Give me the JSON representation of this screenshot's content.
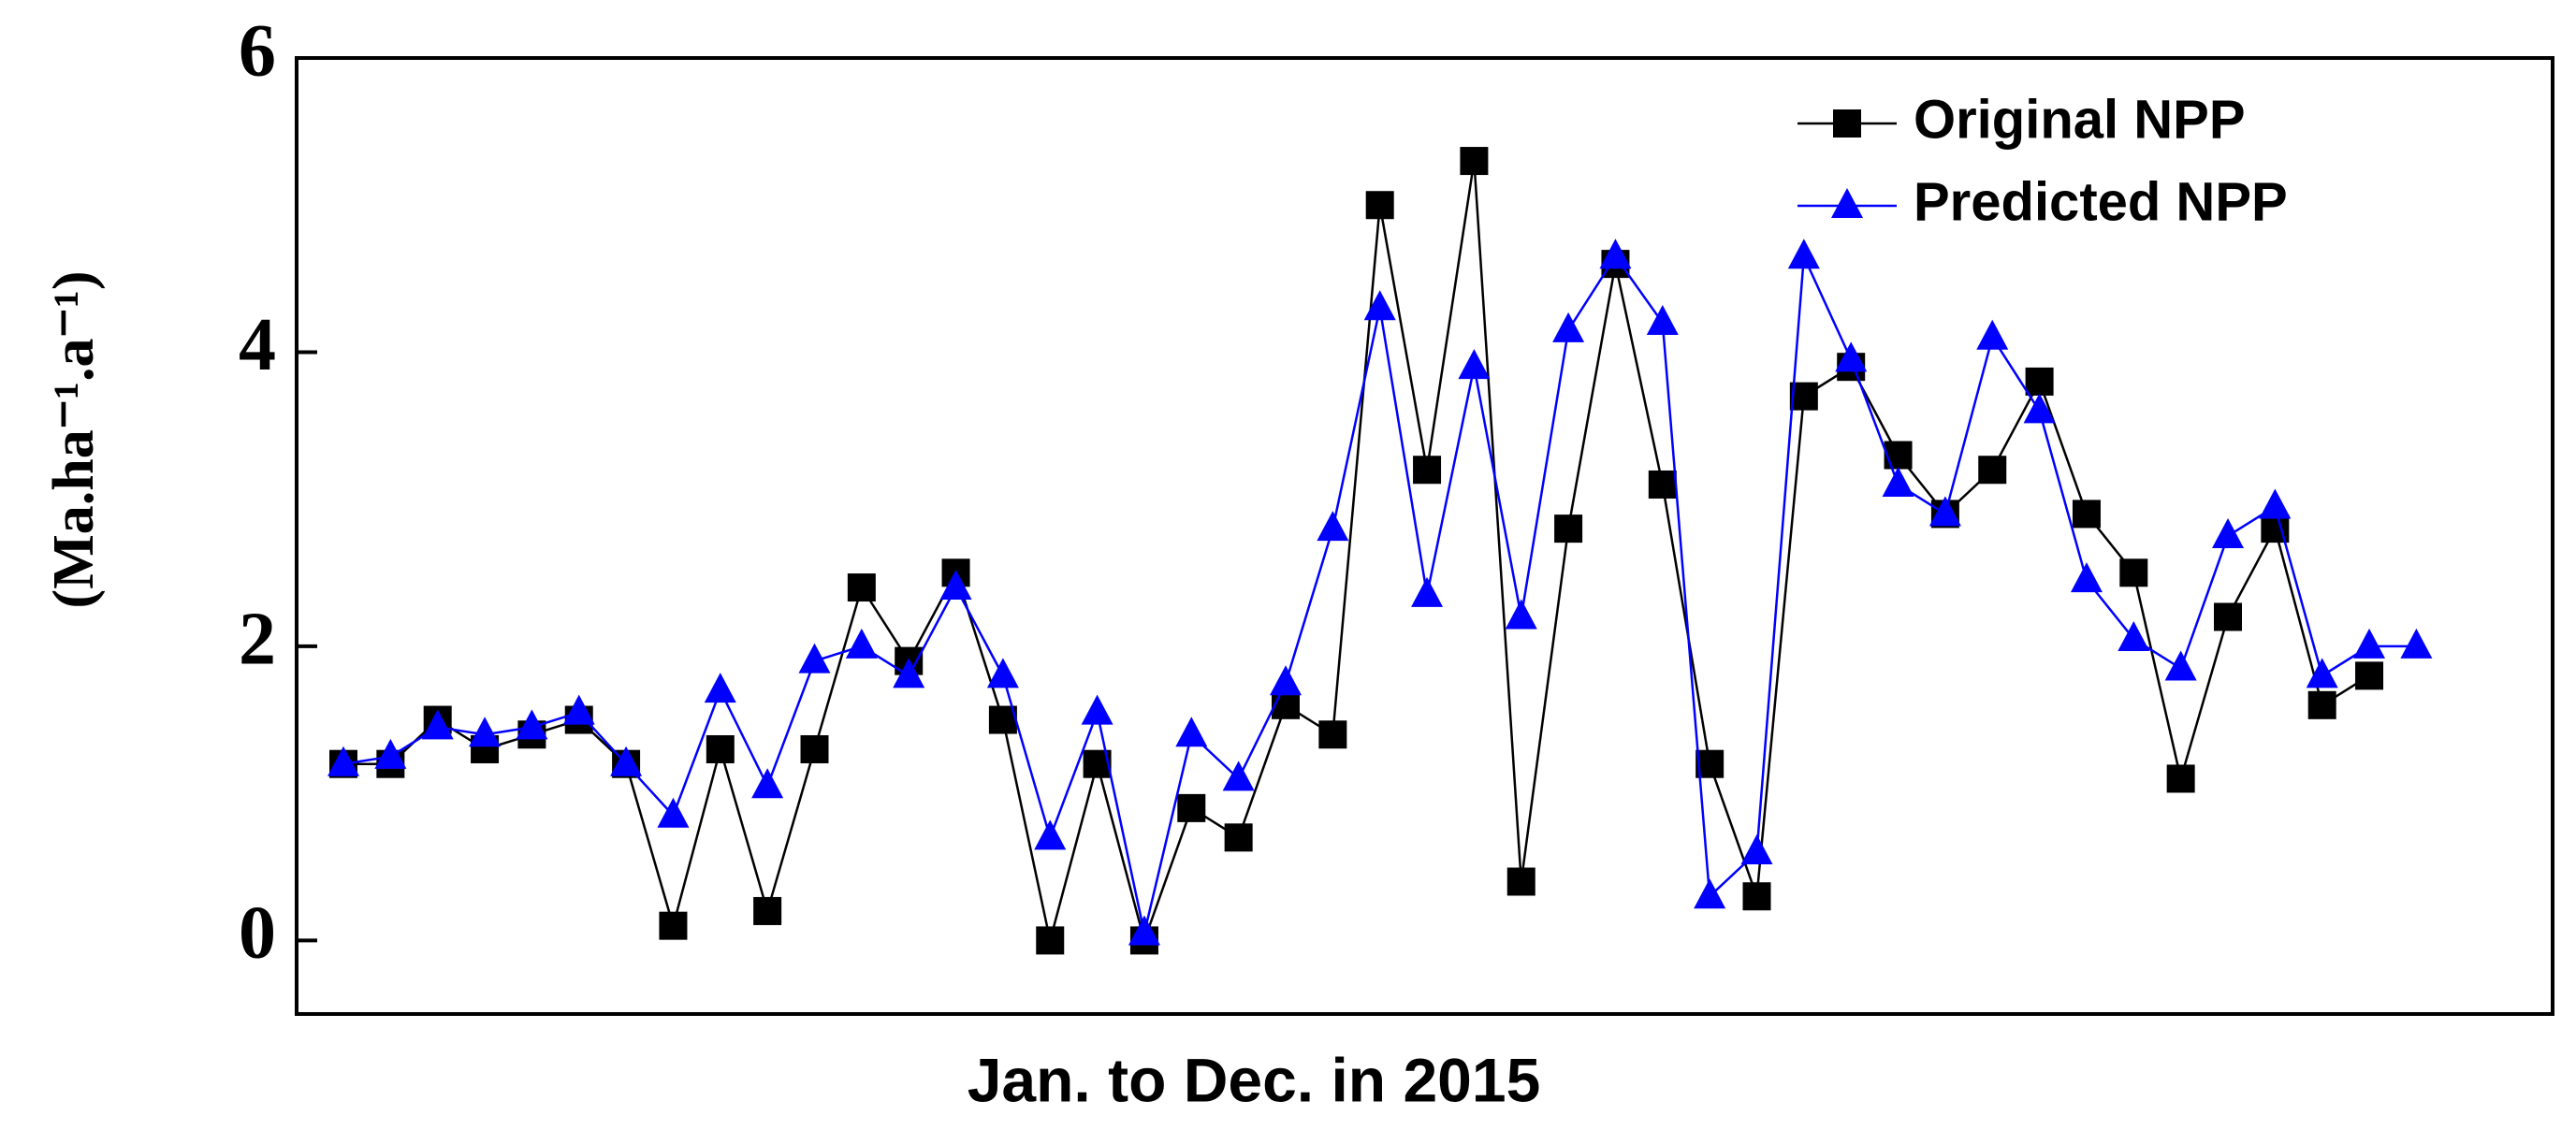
{
  "chart_data": {
    "type": "line",
    "x_label": "Jan. to Dec. in 2015",
    "y_label": "(Ma.ha⁻¹.a⁻¹)",
    "categories": [
      null,
      null,
      null,
      null,
      null,
      null,
      null,
      null,
      null,
      null,
      null,
      null,
      null,
      null,
      null,
      null,
      null,
      null,
      null,
      null,
      null,
      null,
      null,
      null,
      null,
      null,
      null,
      null,
      null,
      null,
      null,
      null,
      null,
      null,
      null,
      null,
      null,
      null,
      null,
      null,
      null,
      null,
      null,
      null,
      null
    ],
    "series": [
      {
        "name": "Original NPP",
        "color": "#000000",
        "marker": "square",
        "values": [
          1.2,
          1.2,
          1.5,
          1.3,
          1.4,
          1.5,
          1.2,
          0.1,
          1.3,
          0.2,
          1.3,
          2.4,
          1.9,
          2.5,
          1.5,
          0.0,
          1.2,
          0.0,
          0.9,
          0.7,
          1.6,
          1.4,
          5.0,
          3.2,
          5.3,
          0.4,
          2.8,
          4.6,
          3.1,
          1.2,
          0.3,
          3.7,
          3.9,
          3.3,
          2.9,
          3.2,
          3.8,
          2.9,
          2.5,
          1.1,
          2.2,
          2.8,
          1.6,
          1.8,
          null
        ]
      },
      {
        "name": "Predicted NPP",
        "color": "#0000ff",
        "marker": "triangle",
        "values": [
          1.2,
          1.25,
          1.45,
          1.4,
          1.45,
          1.55,
          1.2,
          0.85,
          1.7,
          1.05,
          1.9,
          2.0,
          1.8,
          2.4,
          1.8,
          0.7,
          1.55,
          0.05,
          1.4,
          1.1,
          1.75,
          2.8,
          4.3,
          2.35,
          3.9,
          2.2,
          4.15,
          4.65,
          4.2,
          0.3,
          0.6,
          4.65,
          3.95,
          3.1,
          2.9,
          4.1,
          3.6,
          2.45,
          2.05,
          1.85,
          2.75,
          2.95,
          1.8,
          2.0,
          2.0
        ]
      }
    ],
    "ylim": [
      -0.5,
      6
    ],
    "yticks": [
      0,
      2,
      4,
      6
    ],
    "legend": "upper right"
  }
}
